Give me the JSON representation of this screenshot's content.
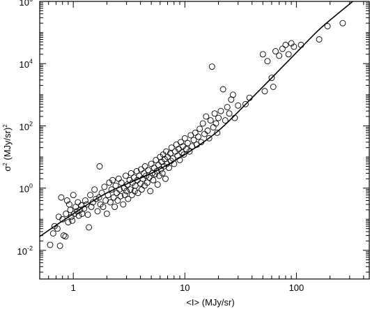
{
  "chart_data": {
    "type": "scatter",
    "title": "",
    "xlabel": "<I> (MJy/sr)",
    "ylabel_base": "σ",
    "ylabel_sup": "2",
    "ylabel_rest": " (MJy/sr)",
    "ylabel_rest_sup": "2",
    "x_scale": "log",
    "y_scale": "log",
    "xlim": [
      0.5,
      450
    ],
    "ylim": [
      0.0012,
      1000000
    ],
    "grid": false,
    "legend": "none",
    "x_ticks": [
      {
        "value": 1,
        "label": "1"
      },
      {
        "value": 10,
        "label": "10"
      },
      {
        "value": 100,
        "label": "100"
      }
    ],
    "y_ticks": [
      {
        "value": 0.01,
        "base": "10",
        "exp": "-2"
      },
      {
        "value": 1,
        "base": "10",
        "exp": "0"
      },
      {
        "value": 100,
        "base": "10",
        "exp": "2"
      },
      {
        "value": 10000,
        "base": "10",
        "exp": "4"
      },
      {
        "value": 1000000,
        "base": "10",
        "exp": "6"
      }
    ],
    "series": [
      {
        "marker": "open-circle",
        "points": [
          [
            0.62,
            0.015
          ],
          [
            0.66,
            0.035
          ],
          [
            0.68,
            0.06
          ],
          [
            0.72,
            0.05
          ],
          [
            0.74,
            0.12
          ],
          [
            0.76,
            0.014
          ],
          [
            0.78,
            0.5
          ],
          [
            0.8,
            0.1
          ],
          [
            0.82,
            0.03
          ],
          [
            0.85,
            0.028
          ],
          [
            0.86,
            0.15
          ],
          [
            0.88,
            0.4
          ],
          [
            0.9,
            0.08
          ],
          [
            0.92,
            0.3
          ],
          [
            0.94,
            0.2
          ],
          [
            0.96,
            0.12
          ],
          [
            0.98,
            0.09
          ],
          [
            1.0,
            0.6
          ],
          [
            1.02,
            0.15
          ],
          [
            1.05,
            0.25
          ],
          [
            1.08,
            0.18
          ],
          [
            1.1,
            0.35
          ],
          [
            1.12,
            0.13
          ],
          [
            1.15,
            0.2
          ],
          [
            1.18,
            0.28
          ],
          [
            1.2,
            0.15
          ],
          [
            1.25,
            0.22
          ],
          [
            1.28,
            0.4
          ],
          [
            1.32,
            0.3
          ],
          [
            1.35,
            0.14
          ],
          [
            1.38,
            0.055
          ],
          [
            1.42,
            0.6
          ],
          [
            1.45,
            0.25
          ],
          [
            1.5,
            0.35
          ],
          [
            1.55,
            0.9
          ],
          [
            1.6,
            0.45
          ],
          [
            1.65,
            0.18
          ],
          [
            1.7,
            0.5
          ],
          [
            1.72,
            5.0
          ],
          [
            1.75,
            0.3
          ],
          [
            1.8,
            0.7
          ],
          [
            1.85,
            0.25
          ],
          [
            1.9,
            1.1
          ],
          [
            1.95,
            0.4
          ],
          [
            2.0,
            0.15
          ],
          [
            2.05,
            0.6
          ],
          [
            2.1,
            1.5
          ],
          [
            2.15,
            0.35
          ],
          [
            2.2,
            0.9
          ],
          [
            2.25,
            1.8
          ],
          [
            2.3,
            0.5
          ],
          [
            2.35,
            0.25
          ],
          [
            2.4,
            1.2
          ],
          [
            2.45,
            0.7
          ],
          [
            2.5,
            0.4
          ],
          [
            2.55,
            2.0
          ],
          [
            2.6,
            0.9
          ],
          [
            2.65,
            0.55
          ],
          [
            2.7,
            1.5
          ],
          [
            2.8,
            0.3
          ],
          [
            2.85,
            1.0
          ],
          [
            2.9,
            0.6
          ],
          [
            2.95,
            2.5
          ],
          [
            3.0,
            0.8
          ],
          [
            3.05,
            1.3
          ],
          [
            3.1,
            0.45
          ],
          [
            3.2,
            1.8
          ],
          [
            3.25,
            0.9
          ],
          [
            3.3,
            3.0
          ],
          [
            3.35,
            0.6
          ],
          [
            3.4,
            1.5
          ],
          [
            3.5,
            2.2
          ],
          [
            3.55,
            0.8
          ],
          [
            3.6,
            1.2
          ],
          [
            3.7,
            3.5
          ],
          [
            3.75,
            1.8
          ],
          [
            3.8,
            0.7
          ],
          [
            3.9,
            2.5
          ],
          [
            4.0,
            1.4
          ],
          [
            4.05,
            4.0
          ],
          [
            4.1,
            0.9
          ],
          [
            4.2,
            2.0
          ],
          [
            4.3,
            3.0
          ],
          [
            4.35,
            1.2
          ],
          [
            4.4,
            5.0
          ],
          [
            4.5,
            2.5
          ],
          [
            4.6,
            1.5
          ],
          [
            4.7,
            3.8
          ],
          [
            4.8,
            2.2
          ],
          [
            4.9,
            0.8
          ],
          [
            5.0,
            6.0
          ],
          [
            5.1,
            3.0
          ],
          [
            5.2,
            1.8
          ],
          [
            5.3,
            4.5
          ],
          [
            5.4,
            2.8
          ],
          [
            5.5,
            8.0
          ],
          [
            5.6,
            3.5
          ],
          [
            5.7,
            1.3
          ],
          [
            5.8,
            5.5
          ],
          [
            5.9,
            2.5
          ],
          [
            6.0,
            10.0
          ],
          [
            6.1,
            4.0
          ],
          [
            6.2,
            7.0
          ],
          [
            6.3,
            3.0
          ],
          [
            6.4,
            12.0
          ],
          [
            6.5,
            5.0
          ],
          [
            6.6,
            8.5
          ],
          [
            6.7,
            2.0
          ],
          [
            6.8,
            15.0
          ],
          [
            6.9,
            6.0
          ],
          [
            7.0,
            10.0
          ],
          [
            7.2,
            4.5
          ],
          [
            7.4,
            13.0
          ],
          [
            7.5,
            7.5
          ],
          [
            7.6,
            20.0
          ],
          [
            7.8,
            9.0
          ],
          [
            8.0,
            6.0
          ],
          [
            8.2,
            15.0
          ],
          [
            8.4,
            25.0
          ],
          [
            8.6,
            11.0
          ],
          [
            8.8,
            18.0
          ],
          [
            9.0,
            8.0
          ],
          [
            9.2,
            30.0
          ],
          [
            9.4,
            14.0
          ],
          [
            9.6,
            22.0
          ],
          [
            9.8,
            12.0
          ],
          [
            10.0,
            40.0
          ],
          [
            10.3,
            18.0
          ],
          [
            10.6,
            28.0
          ],
          [
            11.0,
            15.0
          ],
          [
            11.3,
            50.0
          ],
          [
            11.6,
            22.0
          ],
          [
            12.0,
            35.0
          ],
          [
            12.4,
            60.0
          ],
          [
            12.8,
            25.0
          ],
          [
            13.2,
            45.0
          ],
          [
            13.6,
            80.0
          ],
          [
            14.0,
            30.0
          ],
          [
            14.5,
            120.0
          ],
          [
            15.0,
            55.0
          ],
          [
            15.5,
            200.0
          ],
          [
            16.0,
            70.0
          ],
          [
            16.5,
            40.0
          ],
          [
            17.0,
            150.0
          ],
          [
            17.5,
            8000.0
          ],
          [
            18.0,
            90.0
          ],
          [
            18.5,
            250.0
          ],
          [
            19.0,
            120.0
          ],
          [
            19.5,
            60.0
          ],
          [
            20.0,
            180.0
          ],
          [
            21.0,
            300.0
          ],
          [
            22.0,
            1500.0
          ],
          [
            23.0,
            150.0
          ],
          [
            24.0,
            400.0
          ],
          [
            25.0,
            250.0
          ],
          [
            26.0,
            700.0
          ],
          [
            27.0,
            1000.0
          ],
          [
            28.0,
            180.0
          ],
          [
            30.0,
            450.0
          ],
          [
            35.0,
            500.0
          ],
          [
            38.0,
            800.0
          ],
          [
            50.0,
            20000.0
          ],
          [
            52.0,
            1300.0
          ],
          [
            55.0,
            12000.0
          ],
          [
            60.0,
            3500.0
          ],
          [
            62.0,
            1800.0
          ],
          [
            65.0,
            25000.0
          ],
          [
            70.0,
            18000.0
          ],
          [
            75.0,
            30000.0
          ],
          [
            80.0,
            40000.0
          ],
          [
            85.0,
            20000.0
          ],
          [
            90.0,
            45000.0
          ],
          [
            95.0,
            35000.0
          ],
          [
            110.0,
            40000.0
          ],
          [
            160.0,
            60000.0
          ],
          [
            190.0,
            160000.0
          ],
          [
            260.0,
            200000.0
          ]
        ]
      },
      {
        "marker": "line",
        "fit": [
          [
            0.5,
            0.028
          ],
          [
            1,
            0.15
          ],
          [
            2,
            0.7
          ],
          [
            5,
            3.0
          ],
          [
            10,
            12.0
          ],
          [
            20,
            70.0
          ],
          [
            40,
            800.0
          ],
          [
            80,
            10000.0
          ],
          [
            150,
            100000.0
          ],
          [
            200,
            250000.0
          ],
          [
            320,
            1000000.0
          ]
        ]
      }
    ]
  }
}
